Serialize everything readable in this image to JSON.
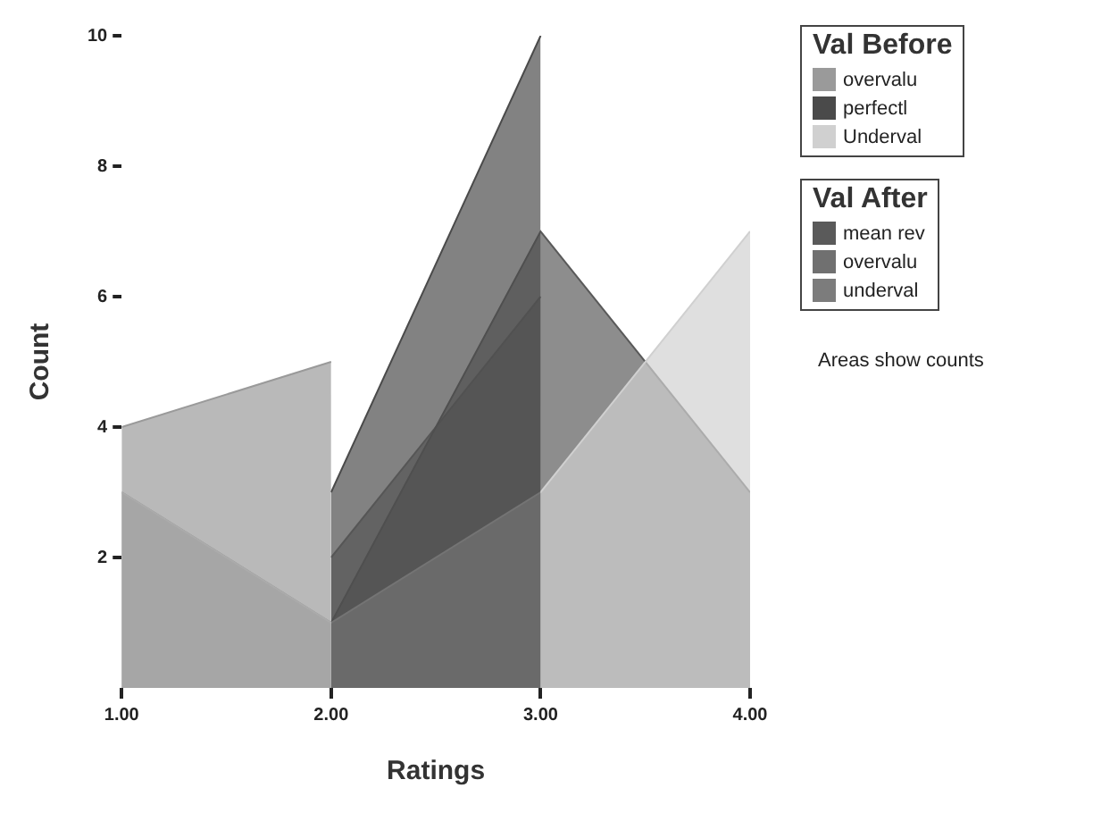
{
  "chart_data": {
    "type": "area",
    "xlabel": "Ratings",
    "ylabel": "Count",
    "legend_title": "Val Before",
    "annotations": [
      "Val After",
      "Areas show counts"
    ],
    "x": [
      1,
      2,
      3,
      4
    ],
    "series": [
      {
        "name": "overvalu",
        "color": "#9a9a9a",
        "values": [
          4,
          5,
          null,
          null
        ]
      },
      {
        "name": "perfectl",
        "color": "#4a4a4a",
        "values": [
          null,
          3,
          10,
          null
        ]
      },
      {
        "name": "Underval",
        "color": "#d0d0d0",
        "values": [
          3,
          1,
          3,
          7
        ]
      },
      {
        "name": "mean rev",
        "color": "#5a5a5a",
        "values": [
          null,
          1,
          7,
          3
        ]
      },
      {
        "name": "overvalu",
        "color": "#707070",
        "values": [
          null,
          2,
          6,
          null
        ]
      },
      {
        "name": "underval",
        "color": "#7c7c7c",
        "values": [
          3,
          1,
          null,
          null
        ]
      }
    ],
    "xlim": [
      1,
      4
    ],
    "xticks": [
      {
        "value": 1,
        "label": "1.00"
      },
      {
        "value": 2,
        "label": "2.00"
      },
      {
        "value": 3,
        "label": "3.00"
      },
      {
        "value": 4,
        "label": "4.00"
      }
    ],
    "ylim": [
      0,
      10
    ],
    "yticks": [
      2,
      4,
      6,
      8,
      10
    ],
    "grid": false,
    "legend": "right",
    "marker": "none"
  }
}
